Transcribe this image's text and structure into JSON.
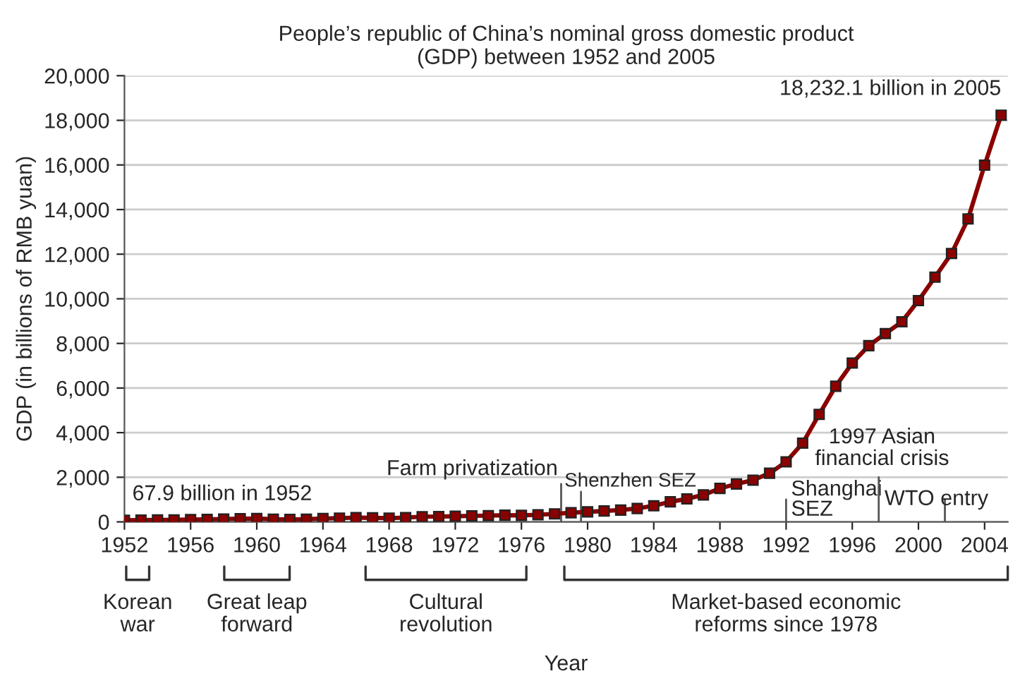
{
  "chart_data": {
    "type": "line",
    "title": "People’s republic of China’s nominal gross domestic product\n(GDP) between 1952 and 2005",
    "xlabel": "Year",
    "ylabel": "GDP (in billions of RMB yuan)",
    "x": [
      1952,
      1953,
      1954,
      1955,
      1956,
      1957,
      1958,
      1959,
      1960,
      1961,
      1962,
      1963,
      1964,
      1965,
      1966,
      1967,
      1968,
      1969,
      1970,
      1971,
      1972,
      1973,
      1974,
      1975,
      1976,
      1977,
      1978,
      1979,
      1980,
      1981,
      1982,
      1983,
      1984,
      1985,
      1986,
      1987,
      1988,
      1989,
      1990,
      1991,
      1992,
      1993,
      1994,
      1995,
      1996,
      1997,
      1998,
      1999,
      2000,
      2001,
      2002,
      2003,
      2004,
      2005
    ],
    "series": [
      {
        "color": "#8b0000",
        "values": [
          67.9,
          80,
          90,
          90,
          100,
          110,
          130,
          140,
          150,
          120,
          110,
          120,
          150,
          170,
          190,
          180,
          170,
          190,
          230,
          240,
          250,
          270,
          280,
          300,
          290,
          320,
          360,
          410,
          450,
          490,
          530,
          600,
          720,
          900,
          1030,
          1210,
          1500,
          1700,
          1870,
          2180,
          2690,
          3530,
          4820,
          6080,
          7120,
          7900,
          8440,
          8970,
          9920,
          10970,
          12030,
          13580,
          15990,
          18232.1
        ]
      }
    ],
    "xlim": [
      1952,
      2005.4
    ],
    "xticks": [
      1952,
      1956,
      1960,
      1964,
      1968,
      1972,
      1976,
      1980,
      1984,
      1988,
      1992,
      1996,
      2000,
      2004
    ],
    "ylim": [
      0,
      20000
    ],
    "yticks": [
      {
        "value": 0,
        "label": "0"
      },
      {
        "value": 2000,
        "label": "2,000"
      },
      {
        "value": 4000,
        "label": "4,000"
      },
      {
        "value": 6000,
        "label": "6,000"
      },
      {
        "value": 8000,
        "label": "8,000"
      },
      {
        "value": 10000,
        "label": "10,000"
      },
      {
        "value": 12000,
        "label": "12,000"
      },
      {
        "value": 14000,
        "label": "14,000"
      },
      {
        "value": 16000,
        "label": "16,000"
      },
      {
        "value": 18000,
        "label": "18,000"
      },
      {
        "value": 20000,
        "label": "20,000"
      }
    ],
    "grid": "y",
    "marker": "square",
    "line_style": "solid",
    "annotations": [
      {
        "text": "67.9 billion in 1952",
        "x": 1952,
        "y": 67.9
      },
      {
        "text": "18,232.1 billion in 2005",
        "x": 2005,
        "y": 18232.1
      },
      "Korean\nwar",
      "Great leap\nforward",
      "Cultural\nrevolution",
      "Market-based economic\nreforms since 1978"
    ],
    "ref_lines": [
      {
        "axis": "x",
        "value": 1978.4,
        "label": "Farm privatization"
      },
      {
        "axis": "x",
        "value": 1979.6,
        "label": "Shenzhen SEZ"
      },
      {
        "axis": "x",
        "value": 1992,
        "label": "Shanghai\nSEZ"
      },
      {
        "axis": "x",
        "value": 1997.6,
        "label": "1997 Asian\nfinancial crisis"
      },
      {
        "axis": "x",
        "value": 2001.6,
        "label": "WTO entry"
      }
    ]
  }
}
